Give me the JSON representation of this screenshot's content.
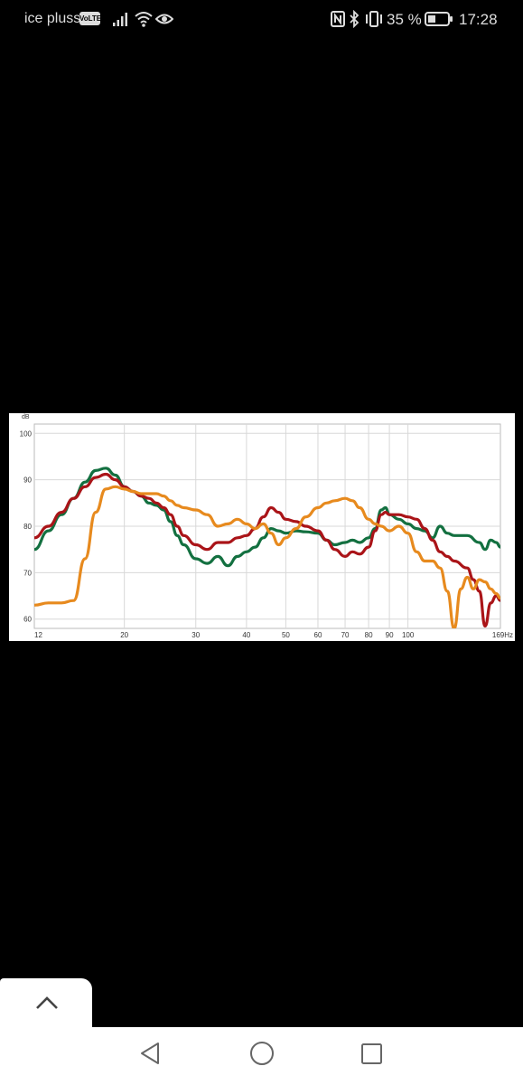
{
  "status_bar": {
    "carrier": "ice pluss",
    "volte_badge": "VoLTE",
    "battery_percent": "35 %",
    "time": "17:28",
    "icons": [
      "signal-icon",
      "wifi-icon",
      "eye-comfort-icon",
      "nfc-icon",
      "bluetooth-icon",
      "vibrate-icon",
      "battery-icon"
    ]
  },
  "chart_data": {
    "type": "line",
    "title": "",
    "ylabel": "dB",
    "xlabel": "",
    "x_scale": "log",
    "xlim": [
      12,
      169
    ],
    "ylim": [
      58,
      102
    ],
    "y_ticks": [
      "100",
      "90",
      "80",
      "70",
      "60"
    ],
    "x_ticks": [
      "12",
      "20",
      "30",
      "40",
      "50",
      "60",
      "70",
      "80",
      "90",
      "100",
      "169Hz"
    ],
    "grid": true,
    "colors": {
      "green": "#137040",
      "red": "#aa1418",
      "orange": "#e78a1e"
    },
    "series": [
      {
        "color": "#137040",
        "x": [
          12,
          13,
          14,
          15,
          16,
          17,
          18,
          19,
          20,
          21,
          22,
          23,
          24,
          25,
          26,
          27,
          28,
          30,
          32,
          34,
          36,
          38,
          40,
          42,
          44,
          46,
          48,
          50,
          53,
          56,
          60,
          63,
          66,
          70,
          73,
          76,
          80,
          83,
          86,
          88,
          90,
          95,
          100,
          105,
          110,
          115,
          120,
          125,
          130,
          140,
          150,
          155,
          160,
          165,
          169
        ],
        "y": [
          75,
          79,
          82.5,
          86,
          89.5,
          92,
          92.5,
          91,
          88.5,
          87.5,
          86.5,
          85,
          84.5,
          83.5,
          81,
          78,
          76,
          73,
          72,
          73.5,
          71.5,
          73.5,
          74.5,
          75.5,
          77.5,
          79.5,
          79,
          78.5,
          79,
          78.8,
          78.5,
          77,
          76,
          76.5,
          77,
          76.5,
          77.5,
          79.5,
          83.5,
          84,
          82.5,
          81.5,
          80.5,
          79.5,
          79,
          77.5,
          80,
          78.5,
          78,
          78,
          76.5,
          75,
          77,
          76.5,
          75.5
        ]
      },
      {
        "color": "#aa1418",
        "x": [
          12,
          13,
          14,
          15,
          16,
          17,
          18,
          19,
          20,
          21,
          22,
          23,
          24,
          25,
          26,
          27,
          28,
          30,
          32,
          34,
          36,
          38,
          40,
          42,
          44,
          46,
          48,
          50,
          53,
          56,
          60,
          63,
          66,
          70,
          73,
          76,
          80,
          83,
          86,
          88,
          90,
          95,
          100,
          105,
          110,
          115,
          120,
          125,
          130,
          140,
          145,
          150,
          155,
          160,
          165,
          169
        ],
        "y": [
          77.5,
          80,
          83,
          86,
          88.5,
          90.5,
          91.2,
          90,
          88.5,
          87.5,
          86.5,
          86,
          85,
          84,
          82.5,
          80,
          78,
          76,
          75,
          76.5,
          76.5,
          77.5,
          78,
          79.5,
          82,
          84,
          83,
          81.5,
          81,
          80,
          79,
          77,
          75,
          73.5,
          74.5,
          74,
          75.5,
          79,
          82.5,
          83,
          82.5,
          82.5,
          82,
          81.5,
          79.5,
          77,
          74.5,
          73.5,
          72.5,
          71,
          68.5,
          66,
          58.5,
          63.5,
          65,
          64
        ]
      },
      {
        "color": "#e78a1e",
        "x": [
          12,
          13,
          14,
          15,
          16,
          17,
          18,
          19,
          20,
          21,
          22,
          23,
          24,
          25,
          26,
          27,
          28,
          30,
          32,
          34,
          36,
          38,
          40,
          42,
          44,
          46,
          48,
          50,
          53,
          56,
          60,
          63,
          66,
          70,
          73,
          76,
          80,
          83,
          86,
          90,
          95,
          100,
          105,
          110,
          115,
          120,
          125,
          130,
          135,
          140,
          145,
          150,
          155,
          160,
          165,
          169
        ],
        "y": [
          63,
          63.5,
          63.5,
          64,
          73,
          83,
          88,
          88.5,
          88,
          87.5,
          87,
          87,
          87,
          86.5,
          85.5,
          84.5,
          84,
          83.5,
          82.5,
          80,
          80.5,
          81.5,
          80.5,
          79.5,
          80.5,
          78.5,
          76,
          77.5,
          79.5,
          82,
          84,
          85,
          85.5,
          86,
          85.5,
          84,
          81.5,
          80.5,
          80,
          79,
          80,
          78.5,
          74.5,
          72.5,
          72.5,
          71,
          66,
          58,
          66.5,
          69,
          66.5,
          68.5,
          68,
          66.5,
          65.5,
          64.5
        ]
      }
    ]
  },
  "controls": {
    "scroll_up_icon": "chevron-up-icon",
    "nav_buttons": [
      "back-icon",
      "home-icon",
      "recents-icon"
    ]
  }
}
